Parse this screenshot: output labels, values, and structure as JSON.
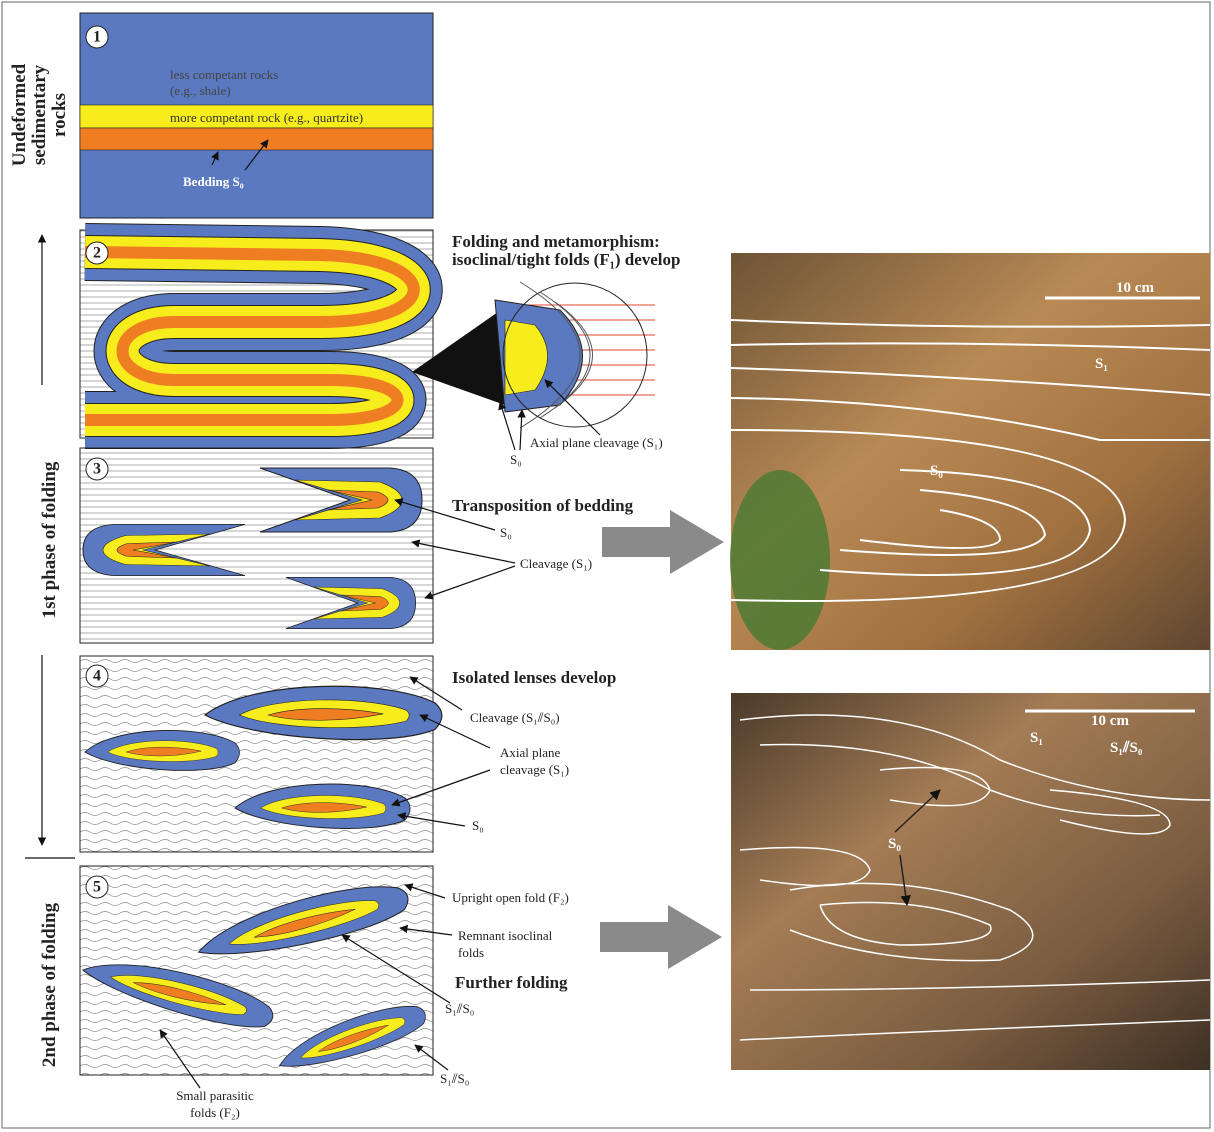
{
  "side_labels": {
    "undeformed": [
      "Undeformed",
      "sedimentary",
      "rocks"
    ],
    "phase1": "1st phase of folding",
    "phase2": "2nd phase of folding"
  },
  "panels": [
    {
      "number": "1",
      "labels": [
        "less competant rocks",
        "(e.g., shale)",
        "more competant rock (e.g., quartzite)",
        "Bedding S₀"
      ]
    },
    {
      "number": "2",
      "title": [
        "Folding and metamorphism:",
        "isoclinal/tight folds (F₁) develop"
      ],
      "labels": [
        "Axial plane cleavage (S₁)",
        "S₀"
      ]
    },
    {
      "number": "3",
      "title": "Transposition of bedding",
      "labels": [
        "S₀",
        "Cleavage (S₁)"
      ]
    },
    {
      "number": "4",
      "title": "Isolated lenses develop",
      "labels": [
        "Cleavage (S₁⫽S₀)",
        "Axial plane",
        "cleavage (S₁)",
        "S₀"
      ]
    },
    {
      "number": "5",
      "title": "Further folding",
      "labels": [
        "Upright open fold (F₂)",
        "Remnant isoclinal",
        "folds",
        "S₁⫽S₀",
        "S₁⫽S₀",
        "Small parasitic",
        "folds (F₂)"
      ]
    }
  ],
  "photos": [
    {
      "scale": "10 cm",
      "labels": [
        "S₁",
        "S₀"
      ]
    },
    {
      "scale": "10 cm",
      "labels": [
        "S₁",
        "S₁⫽S₀",
        "S₀"
      ]
    }
  ]
}
